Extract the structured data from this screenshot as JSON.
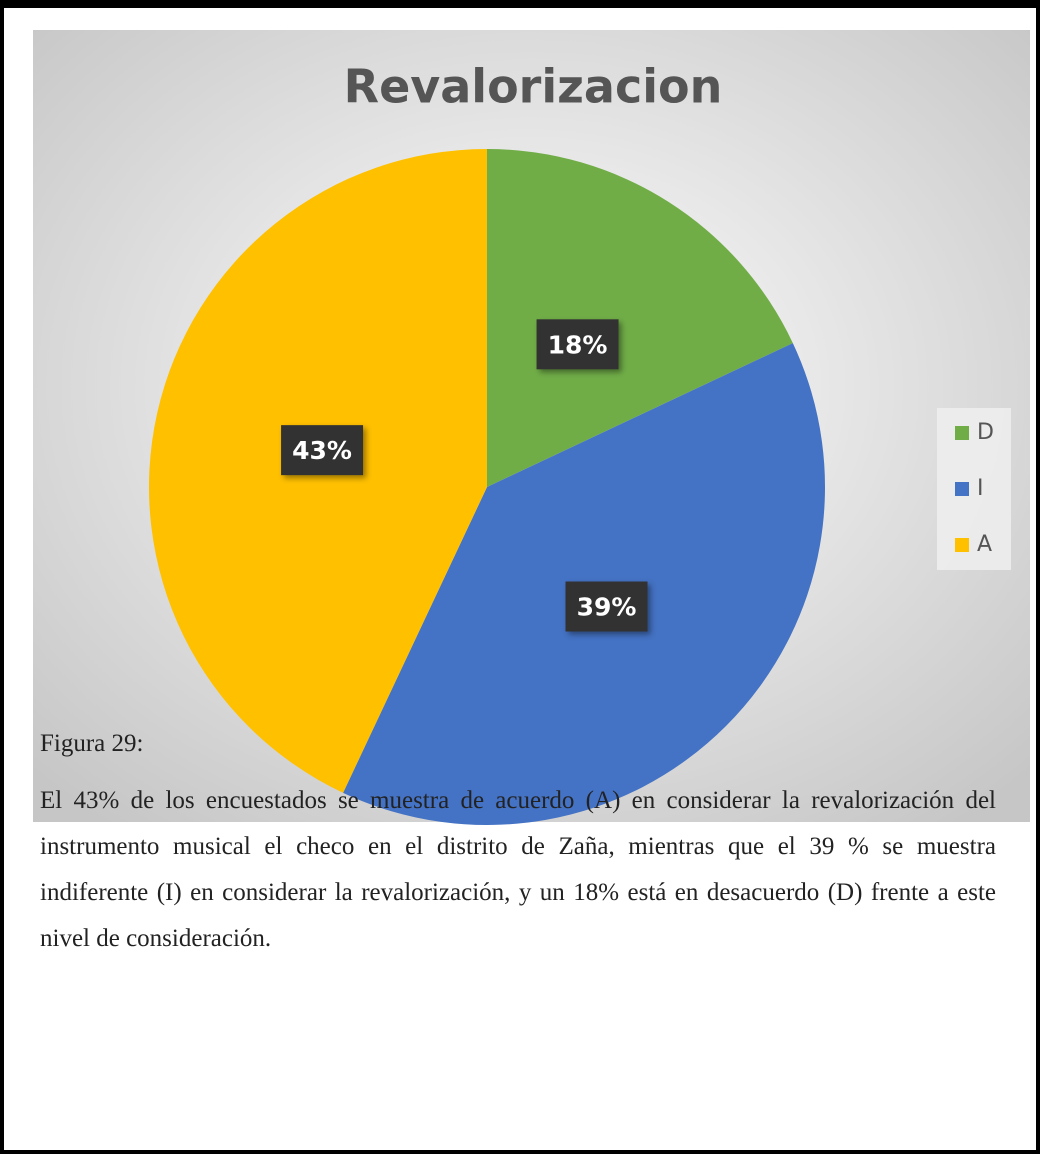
{
  "chart_data": {
    "type": "pie",
    "title": "Revalorizacion",
    "categories": [
      "D",
      "I",
      "A"
    ],
    "values": [
      18,
      39,
      43
    ],
    "value_labels": [
      "18%",
      "39%",
      "43%"
    ],
    "colors": [
      "#70ad47",
      "#4472c4",
      "#ffc000"
    ],
    "legend": "right"
  },
  "figure_label": "Figura 29:",
  "caption": "El 43% de los encuestados se muestra de acuerdo (A) en considerar la revalorización del instrumento musical el checo en el distrito de Zaña, mientras que el 39 % se muestra indiferente (I) en considerar la revalorización, y un 18% está en desacuerdo (D) frente a este nivel de consideración."
}
